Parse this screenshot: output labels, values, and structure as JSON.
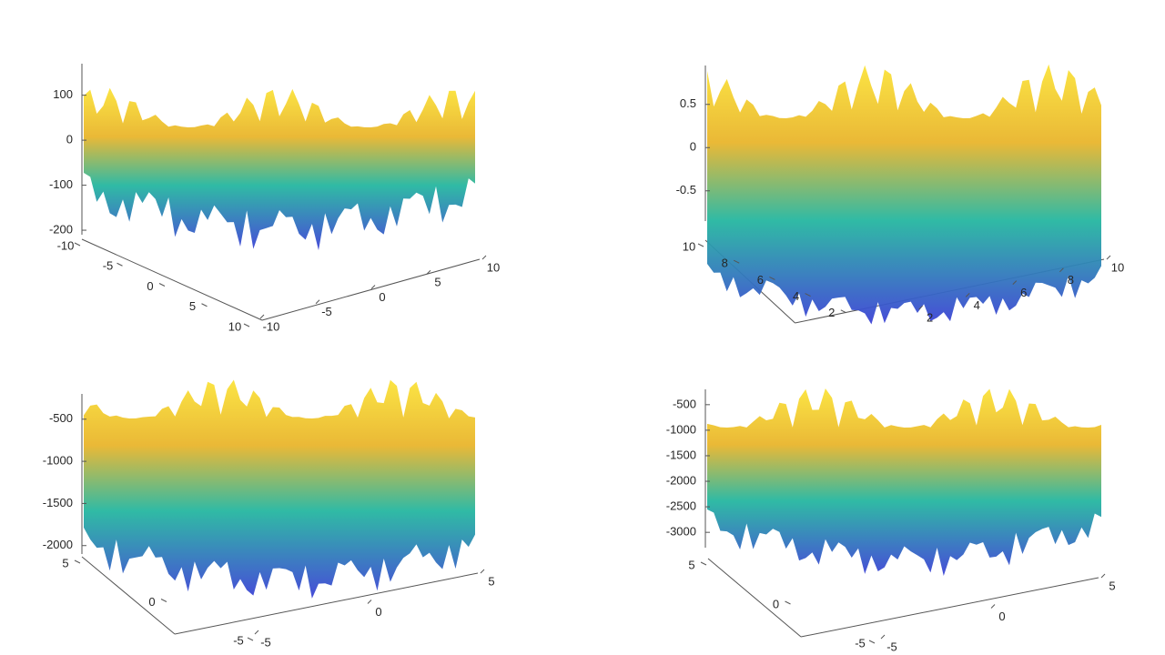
{
  "chart_data": [
    {
      "type": "surface",
      "zlim": [
        -210,
        170
      ],
      "zticks": [
        100,
        0,
        -100,
        -200
      ],
      "xlim": [
        -10,
        10
      ],
      "xticks": [
        -10,
        -5,
        0,
        5,
        10
      ],
      "ylim": [
        -10,
        10
      ],
      "yticks": [
        10,
        5,
        0,
        -5,
        -10
      ]
    },
    {
      "type": "surface",
      "zlim": [
        -0.85,
        0.95
      ],
      "zticks": [
        0.5,
        0,
        -0.5
      ],
      "xlim": [
        0,
        10
      ],
      "xticks": [
        2,
        4,
        6,
        8,
        10
      ],
      "ylim": [
        0,
        10
      ],
      "yticks": [
        10,
        8,
        6,
        4,
        2
      ]
    },
    {
      "type": "surface",
      "zlim": [
        -2100,
        -200
      ],
      "zticks": [
        -500,
        -1000,
        -1500,
        -2000
      ],
      "xlim": [
        -5,
        5
      ],
      "xticks": [
        -5,
        0,
        5
      ],
      "ylim": [
        -5,
        5
      ],
      "yticks": [
        5,
        0,
        -5
      ]
    },
    {
      "type": "surface",
      "zlim": [
        -3300,
        -200
      ],
      "zticks": [
        -500,
        -1000,
        -1500,
        -2000,
        -2500,
        -3000
      ],
      "xlim": [
        -5,
        5
      ],
      "xticks": [
        -5,
        0,
        5
      ],
      "ylim": [
        -5,
        5
      ],
      "yticks": [
        5,
        0,
        -5
      ]
    }
  ]
}
